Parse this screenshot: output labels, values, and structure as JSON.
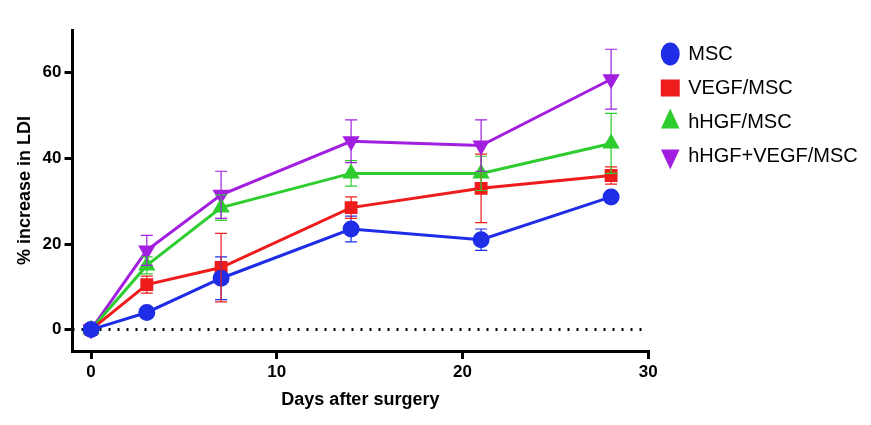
{
  "chart_data": {
    "type": "line",
    "x_label": "Days after surgery",
    "y_label": "% increase in LDI",
    "x": [
      0,
      3,
      7,
      14,
      21,
      28
    ],
    "xlim": [
      -1,
      30
    ],
    "xticks": [
      0,
      10,
      20,
      30
    ],
    "ylim": [
      -5,
      70
    ],
    "yticks": [
      0,
      20,
      40,
      60
    ],
    "legend": "right",
    "series": [
      {
        "name": "MSC",
        "color": "#1f2ee6",
        "marker": "circle",
        "values": [
          0,
          4,
          12,
          23.5,
          21,
          31
        ],
        "errors": [
          0,
          1,
          5,
          3,
          2.5,
          1
        ]
      },
      {
        "name": "VEGF/MSC",
        "color": "#ee1c1c",
        "marker": "square",
        "values": [
          0,
          10.5,
          14.5,
          28.5,
          33,
          36
        ],
        "errors": [
          0,
          2,
          8,
          2.5,
          8,
          2
        ]
      },
      {
        "name": "hHGF/MSC",
        "color": "#2ecc2e",
        "marker": "triangle",
        "values": [
          0,
          15,
          28.5,
          36.5,
          36.5,
          43.5
        ],
        "errors": [
          0,
          2,
          3,
          3,
          4,
          7
        ]
      },
      {
        "name": "hHGF+VEGF/MSC",
        "color": "#a21fe0",
        "marker": "triangle-down",
        "values": [
          0,
          18.5,
          31.5,
          44,
          43,
          58.5
        ],
        "errors": [
          0,
          3.5,
          5.5,
          5,
          6,
          7
        ]
      }
    ]
  }
}
